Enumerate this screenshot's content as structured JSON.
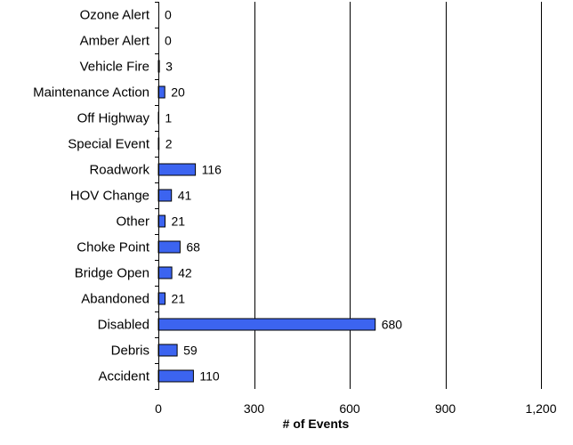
{
  "chart_data": {
    "type": "bar",
    "orientation": "horizontal",
    "categories": [
      "Ozone Alert",
      "Amber Alert",
      "Vehicle Fire",
      "Maintenance Action",
      "Off Highway",
      "Special Event",
      "Roadwork",
      "HOV Change",
      "Other",
      "Choke Point",
      "Bridge Open",
      "Abandoned",
      "Disabled",
      "Debris",
      "Accident"
    ],
    "values": [
      0,
      0,
      3,
      20,
      1,
      2,
      116,
      41,
      21,
      68,
      42,
      21,
      680,
      59,
      110
    ],
    "data_labels": [
      "0",
      "0",
      "3",
      "20",
      "1",
      "2",
      "116",
      "41",
      "21",
      "68",
      "42",
      "21",
      "680",
      "59",
      "110"
    ],
    "xlabel": "# of Events",
    "xlim": [
      0,
      1200
    ],
    "x_ticks": [
      "0",
      "300",
      "600",
      "900",
      "1,200"
    ],
    "x_tick_values": [
      0,
      300,
      600,
      900,
      1200
    ],
    "grid": "vertical gridlines",
    "bar_color": "#3c64f0"
  }
}
